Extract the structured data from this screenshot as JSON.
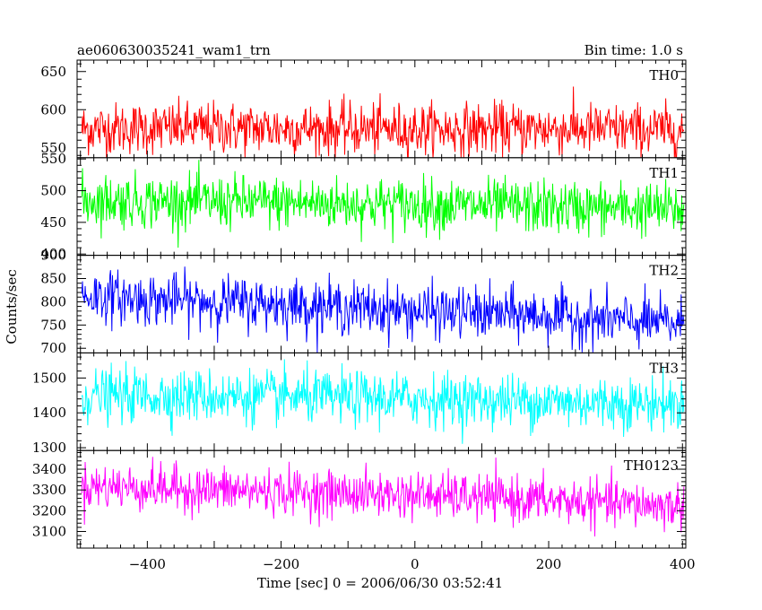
{
  "chart_data": {
    "type": "line",
    "title": "ae060630035241_wam1_trn",
    "subtitle": "Bin time: 1.0 s",
    "xlabel": "Time [sec] 0 = 2006/06/30 03:52:41",
    "ylabel": "Counts/sec",
    "xlim": [
      -505,
      405
    ],
    "x_ticks": [
      -400,
      -200,
      0,
      200,
      400
    ],
    "x_tick_labels": [
      "−400",
      "−200",
      "0",
      "200",
      "400"
    ],
    "bin_time_s": 1.0,
    "grid": false,
    "panels": [
      {
        "name": "TH0",
        "color": "#ff0000",
        "ylim": [
          537,
          665
        ],
        "y_ticks": [
          550,
          600,
          650
        ],
        "y_tick_labels": [
          "550",
          "600",
          "650"
        ],
        "trend": [
          [
            -505,
            575
          ],
          [
            -300,
            576
          ],
          [
            0,
            574
          ],
          [
            200,
            575
          ],
          [
            400,
            573
          ]
        ],
        "noise_sigma": 17,
        "noise_min": 537,
        "noise_max": 665
      },
      {
        "name": "TH1",
        "color": "#00ff00",
        "ylim": [
          398,
          552
        ],
        "y_ticks": [
          400,
          450,
          500,
          550
        ],
        "y_tick_labels": [
          "400",
          "450",
          "500",
          "550"
        ],
        "trend": [
          [
            -505,
            485
          ],
          [
            -300,
            482
          ],
          [
            0,
            478
          ],
          [
            200,
            474
          ],
          [
            400,
            470
          ]
        ],
        "noise_sigma": 21,
        "noise_min": 410,
        "noise_max": 552
      },
      {
        "name": "TH2",
        "color": "#0000ff",
        "ylim": [
          690,
          900
        ],
        "y_ticks": [
          700,
          750,
          800,
          850,
          900
        ],
        "y_tick_labels": [
          "700",
          "750",
          "800",
          "850",
          "900"
        ],
        "trend": [
          [
            -505,
            815
          ],
          [
            -400,
            805
          ],
          [
            -200,
            795
          ],
          [
            0,
            780
          ],
          [
            200,
            770
          ],
          [
            300,
            760
          ],
          [
            400,
            752
          ]
        ],
        "noise_sigma": 28,
        "noise_min": 690,
        "noise_max": 900
      },
      {
        "name": "TH3",
        "color": "#00ffff",
        "ylim": [
          1292,
          1572
        ],
        "y_ticks": [
          1300,
          1400,
          1500
        ],
        "y_tick_labels": [
          "1300",
          "1400",
          "1500"
        ],
        "trend": [
          [
            -505,
            1450
          ],
          [
            -300,
            1448
          ],
          [
            0,
            1440
          ],
          [
            200,
            1432
          ],
          [
            400,
            1425
          ]
        ],
        "noise_sigma": 38,
        "noise_min": 1305,
        "noise_max": 1572
      },
      {
        "name": "TH0123",
        "color": "#ff00ff",
        "ylim": [
          3020,
          3490
        ],
        "y_ticks": [
          3100,
          3200,
          3300,
          3400
        ],
        "y_tick_labels": [
          "3100",
          "3200",
          "3300",
          "3400"
        ],
        "trend": [
          [
            -505,
            3320
          ],
          [
            -300,
            3300
          ],
          [
            0,
            3275
          ],
          [
            200,
            3250
          ],
          [
            400,
            3220
          ]
        ],
        "noise_sigma": 55,
        "noise_min": 3030,
        "noise_max": 3490
      }
    ]
  }
}
